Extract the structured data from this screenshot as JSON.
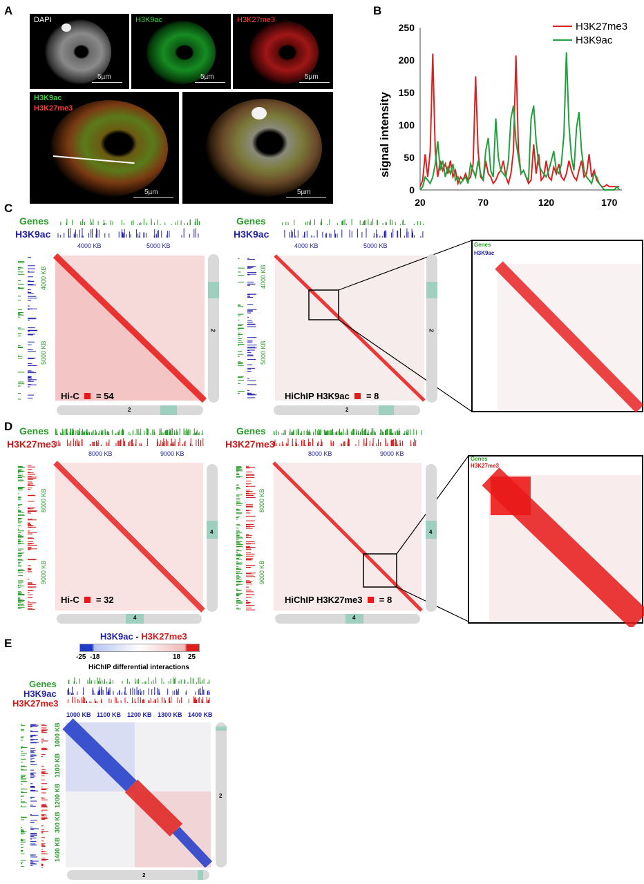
{
  "panels": {
    "A": "A",
    "B": "B",
    "C": "C",
    "D": "D",
    "E": "E"
  },
  "panelA": {
    "titles": {
      "dapi": "DAPI",
      "h3k9ac": "H3K9ac",
      "h3k27me3": "H3K27me3"
    },
    "merge_labels": {
      "h3k9ac": "H3K9ac",
      "h3k27me3": "H3K27me3"
    },
    "scale_bar": "5µm"
  },
  "chart_data": {
    "type": "line",
    "title": "",
    "xlabel": "",
    "ylabel": "signal intensity",
    "xlim": [
      20,
      180
    ],
    "ylim": [
      0,
      250
    ],
    "xticks": [
      20,
      70,
      120,
      170
    ],
    "yticks": [
      0,
      50,
      100,
      150,
      200,
      250
    ],
    "legend_position": "top-right",
    "series": [
      {
        "name": "H3K27me3",
        "color": "#e01e1e",
        "x": [
          20,
          22,
          24,
          26,
          28,
          30,
          32,
          34,
          36,
          38,
          40,
          42,
          44,
          46,
          48,
          50,
          52,
          54,
          56,
          58,
          60,
          62,
          64,
          66,
          68,
          70,
          72,
          74,
          76,
          78,
          80,
          82,
          84,
          86,
          88,
          90,
          92,
          94,
          96,
          98,
          100,
          102,
          104,
          106,
          108,
          110,
          112,
          114,
          116,
          118,
          120,
          122,
          124,
          126,
          128,
          130,
          132,
          134,
          136,
          138,
          140,
          142,
          144,
          146,
          148,
          150,
          152,
          154,
          156,
          158,
          160,
          162,
          164,
          166,
          168,
          170,
          172,
          174,
          176,
          178
        ],
        "y": [
          5,
          15,
          55,
          20,
          60,
          210,
          60,
          20,
          45,
          30,
          40,
          25,
          45,
          20,
          30,
          10,
          20,
          15,
          25,
          15,
          20,
          40,
          175,
          60,
          20,
          15,
          45,
          25,
          20,
          10,
          15,
          25,
          30,
          45,
          20,
          10,
          25,
          60,
          207,
          60,
          25,
          30,
          20,
          10,
          15,
          70,
          25,
          55,
          15,
          20,
          45,
          20,
          15,
          35,
          25,
          40,
          20,
          15,
          25,
          45,
          30,
          20,
          15,
          30,
          45,
          20,
          25,
          55,
          20,
          30,
          15,
          10,
          5,
          5,
          8,
          5,
          5,
          5,
          5,
          5
        ],
        "name_x": "",
        "dummy": ""
      },
      {
        "name": "H3K9ac",
        "color": "#1fa03c",
        "x": [
          20,
          22,
          24,
          26,
          28,
          30,
          32,
          34,
          36,
          38,
          40,
          42,
          44,
          46,
          48,
          50,
          52,
          54,
          56,
          58,
          60,
          62,
          64,
          66,
          68,
          70,
          72,
          74,
          76,
          78,
          80,
          82,
          84,
          86,
          88,
          90,
          92,
          94,
          96,
          98,
          100,
          102,
          104,
          106,
          108,
          110,
          112,
          114,
          116,
          118,
          120,
          122,
          124,
          126,
          128,
          130,
          132,
          134,
          136,
          138,
          140,
          142,
          144,
          146,
          148,
          150,
          152,
          154,
          156,
          158,
          160,
          162,
          164,
          166,
          168,
          170,
          172,
          174,
          176,
          178
        ],
        "y": [
          0,
          5,
          20,
          15,
          10,
          20,
          40,
          75,
          30,
          45,
          20,
          35,
          25,
          40,
          15,
          20,
          10,
          15,
          20,
          10,
          40,
          30,
          20,
          45,
          25,
          15,
          60,
          80,
          30,
          20,
          110,
          50,
          30,
          25,
          20,
          45,
          110,
          130,
          75,
          50,
          25,
          30,
          20,
          15,
          110,
          130,
          75,
          40,
          30,
          25,
          20,
          30,
          45,
          60,
          30,
          25,
          40,
          85,
          212,
          100,
          50,
          30,
          95,
          120,
          60,
          30,
          20,
          15,
          10,
          25,
          20,
          10,
          5,
          0,
          0,
          0,
          0,
          0,
          5,
          0
        ],
        "name_x": "",
        "dummy": ""
      }
    ]
  },
  "panelC": {
    "genes_label": "Genes",
    "track_label": "H3K9ac",
    "top_ticks": [
      "4000 KB",
      "5000 KB"
    ],
    "side_ticks": [
      "4000 KB",
      "5000 KB"
    ],
    "chrom": "2",
    "left_legend": "Hi-C",
    "left_value": "= 54",
    "right_legend": "HiChIP H3K9ac",
    "right_value": "= 8",
    "zoom_genes": "Genes",
    "zoom_track": "H3K9ac"
  },
  "panelD": {
    "genes_label": "Genes",
    "track_label": "H3K27me3",
    "top_ticks": [
      "8000 KB",
      "9000 KB"
    ],
    "side_ticks": [
      "8000 KB",
      "9000 KB"
    ],
    "chrom": "4",
    "left_legend": "Hi-C",
    "left_value": "= 32",
    "right_legend": "HiChIP H3K27me3",
    "right_value": "= 8",
    "zoom_genes": "Genes",
    "zoom_track": "H3K27me3"
  },
  "panelE": {
    "colorbar_title_a": "H3K9ac",
    "colorbar_title_sep": " - ",
    "colorbar_title_b": "H3K27me3",
    "colorbar_ticks": [
      "-25",
      "-18",
      "18",
      "25"
    ],
    "colorbar_caption": "HiChIP differential interactions",
    "genes_label": "Genes",
    "track1_label": "H3K9ac",
    "track2_label": "H3K27me3",
    "top_ticks": [
      "1000 KB",
      "1100 KB",
      "1200 KB",
      "1300 KB",
      "1400 KB"
    ],
    "side_ticks": [
      "1000 KB",
      "1100 KB",
      "1200 KB",
      "300 KB",
      "1400 KB"
    ],
    "chrom": "2"
  }
}
